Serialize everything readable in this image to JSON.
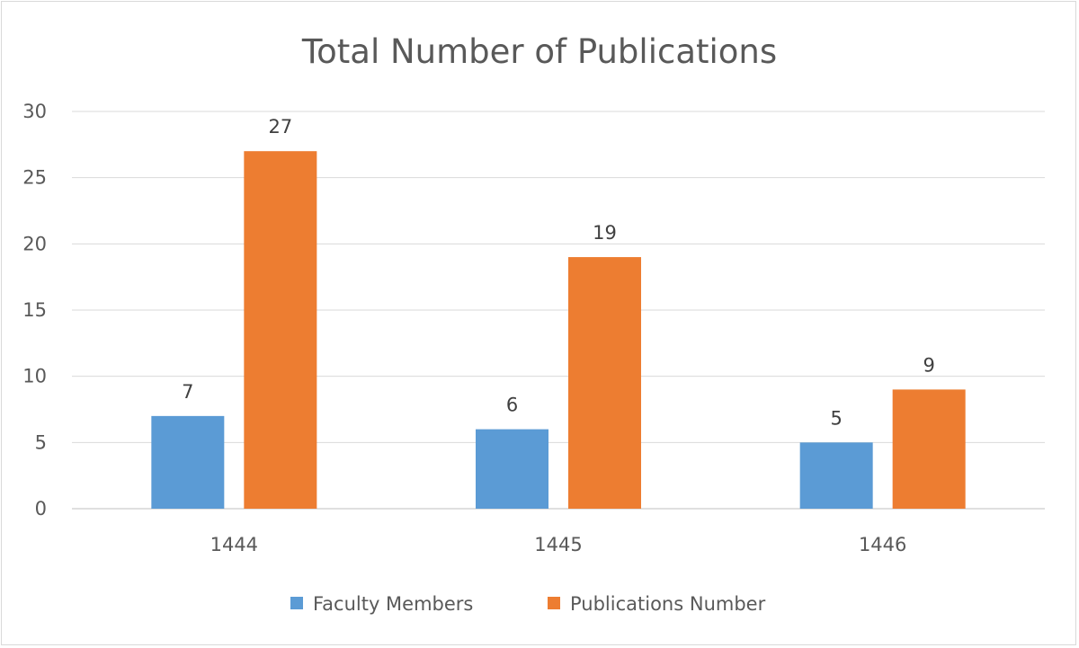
{
  "chart_data": {
    "type": "bar",
    "title": "Total Number of Publications",
    "categories": [
      "1444",
      "1445",
      "1446"
    ],
    "series": [
      {
        "name": "Faculty Members",
        "values": [
          7,
          6,
          5
        ],
        "color": "#5B9BD5"
      },
      {
        "name": "Publications Number",
        "values": [
          27,
          19,
          9
        ],
        "color": "#ED7D31"
      }
    ],
    "xlabel": "",
    "ylabel": "",
    "ylim": [
      0,
      30
    ],
    "yticks": [
      "0",
      "5",
      "10",
      "15",
      "20",
      "25",
      "30"
    ],
    "grid": true,
    "legend": "bottom",
    "data_labels": true
  }
}
